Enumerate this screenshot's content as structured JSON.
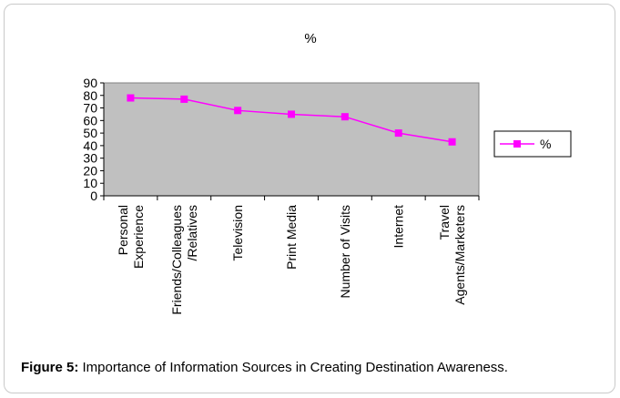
{
  "chart_data": {
    "type": "line",
    "title": "%",
    "xlabel": "",
    "ylabel": "",
    "categories": [
      [
        "Personal",
        "Experience"
      ],
      [
        "Friends/Colleagues",
        "/Relatives"
      ],
      [
        "Television"
      ],
      [
        "Print Media"
      ],
      [
        "Number of Visits"
      ],
      [
        "Internet"
      ],
      [
        "Travel",
        "Agents/Marketers"
      ]
    ],
    "series": [
      {
        "name": "%",
        "values": [
          78,
          77,
          68,
          65,
          63,
          50,
          43
        ],
        "color": "#ff00ff"
      }
    ],
    "ylim": [
      0,
      90
    ],
    "yticks": [
      0,
      10,
      20,
      30,
      40,
      50,
      60,
      70,
      80,
      90
    ],
    "grid": false,
    "plot_background": "#c0c0c0",
    "legend_position": "right"
  },
  "caption": {
    "label": "Figure 5:",
    "text": " Importance of Information Sources in Creating Destination Awareness."
  }
}
